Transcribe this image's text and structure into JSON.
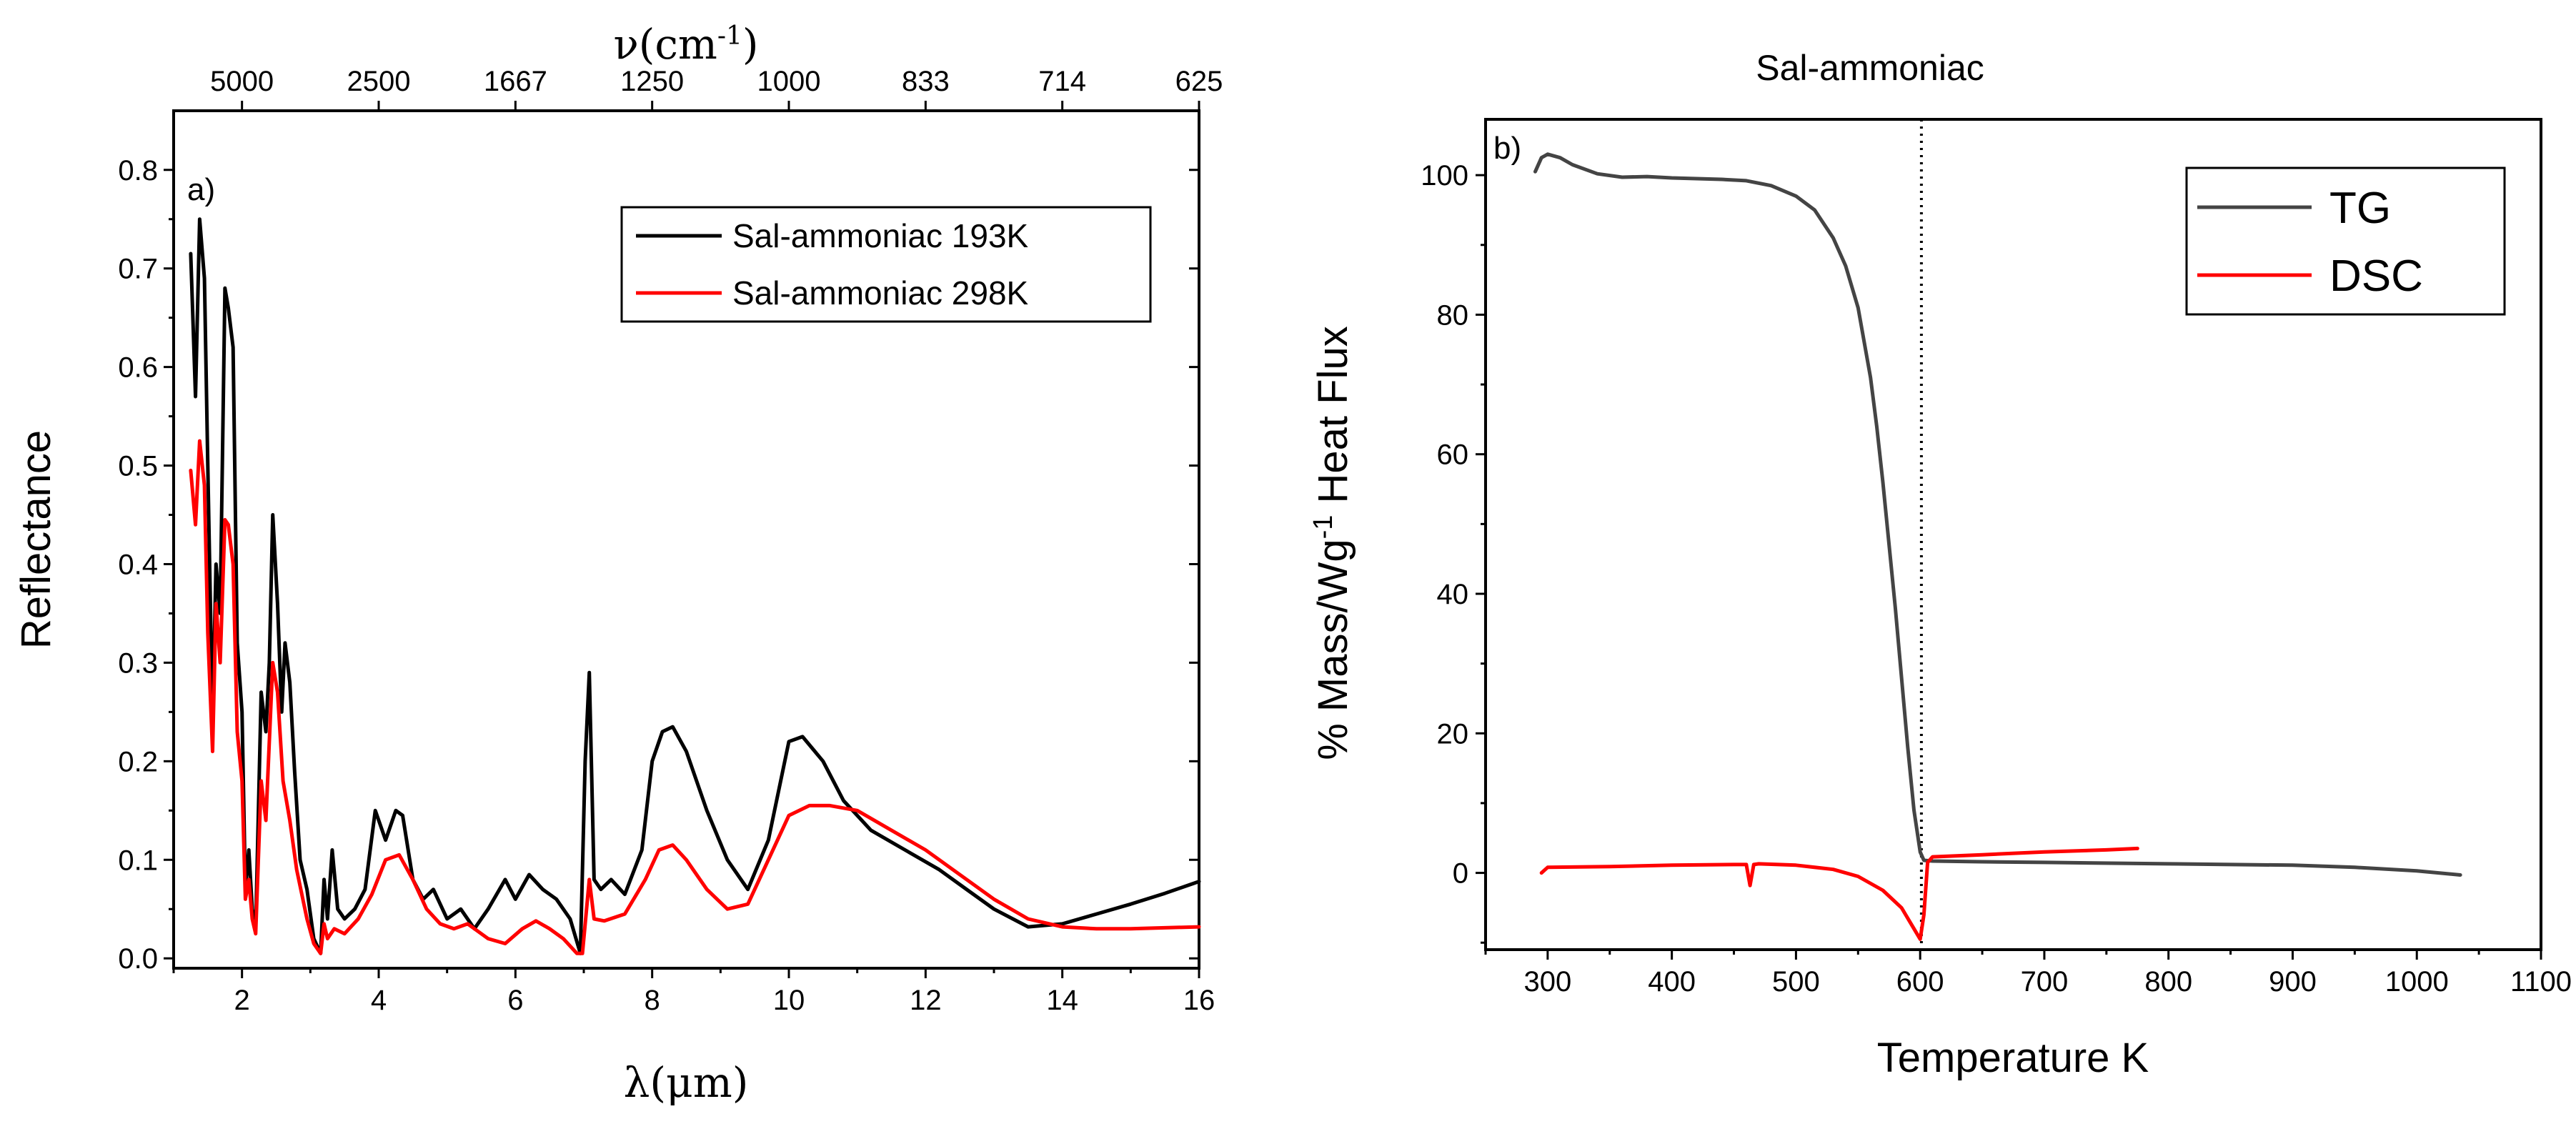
{
  "chart_data": [
    {
      "type": "line",
      "panel_label": "a)",
      "xlabel": "λ(μm)",
      "ylabel": "Reflectance",
      "top_axis_label": "ν(cm",
      "top_axis_label_sup": "-1",
      "top_axis_label_end": ")",
      "xlim": [
        1.0,
        16.0
      ],
      "ylim": [
        -0.01,
        0.86
      ],
      "xticks": [
        2,
        4,
        6,
        8,
        10,
        12,
        14,
        16
      ],
      "xtick_labels": [
        "2",
        "4",
        "6",
        "8",
        "10",
        "12",
        "14",
        "16"
      ],
      "yticks": [
        0.0,
        0.1,
        0.2,
        0.3,
        0.4,
        0.5,
        0.6,
        0.7,
        0.8
      ],
      "ytick_labels": [
        "0.0",
        "0.1",
        "0.2",
        "0.3",
        "0.4",
        "0.5",
        "0.6",
        "0.7",
        "0.8"
      ],
      "top_ticks_um": [
        2.0,
        4.0,
        6.0,
        8.0,
        10.0,
        12.0,
        14.0,
        16.0
      ],
      "top_tick_labels": [
        "5000",
        "2500",
        "1667",
        "1250",
        "1000",
        "833",
        "714",
        "625"
      ],
      "legend_position": "top-right",
      "series": [
        {
          "name": "Sal-ammoniac 193K",
          "color": "#000000",
          "x": [
            1.25,
            1.32,
            1.38,
            1.45,
            1.5,
            1.57,
            1.62,
            1.68,
            1.75,
            1.8,
            1.87,
            1.93,
            2.0,
            2.05,
            2.1,
            2.15,
            2.2,
            2.28,
            2.35,
            2.4,
            2.45,
            2.52,
            2.58,
            2.63,
            2.7,
            2.77,
            2.85,
            2.95,
            3.05,
            3.15,
            3.2,
            3.25,
            3.32,
            3.4,
            3.5,
            3.65,
            3.8,
            3.95,
            4.1,
            4.25,
            4.35,
            4.5,
            4.65,
            4.8,
            5.0,
            5.2,
            5.4,
            5.6,
            5.85,
            6.0,
            6.2,
            6.4,
            6.6,
            6.8,
            6.95,
            7.02,
            7.08,
            7.15,
            7.25,
            7.4,
            7.6,
            7.85,
            8.0,
            8.15,
            8.3,
            8.5,
            8.8,
            9.1,
            9.4,
            9.7,
            10.0,
            10.2,
            10.5,
            10.8,
            11.2,
            11.7,
            12.2,
            12.6,
            13.0,
            13.5,
            14.0,
            14.5,
            15.0,
            15.5,
            16.0
          ],
          "y": [
            0.715,
            0.57,
            0.75,
            0.69,
            0.5,
            0.24,
            0.4,
            0.35,
            0.68,
            0.66,
            0.62,
            0.32,
            0.25,
            0.07,
            0.11,
            0.05,
            0.03,
            0.27,
            0.23,
            0.3,
            0.45,
            0.36,
            0.25,
            0.32,
            0.28,
            0.19,
            0.1,
            0.07,
            0.02,
            0.005,
            0.08,
            0.04,
            0.11,
            0.05,
            0.04,
            0.05,
            0.07,
            0.15,
            0.12,
            0.15,
            0.145,
            0.08,
            0.06,
            0.07,
            0.04,
            0.05,
            0.03,
            0.05,
            0.08,
            0.06,
            0.085,
            0.07,
            0.06,
            0.04,
            0.005,
            0.2,
            0.29,
            0.08,
            0.07,
            0.08,
            0.065,
            0.11,
            0.2,
            0.23,
            0.235,
            0.21,
            0.15,
            0.1,
            0.07,
            0.12,
            0.22,
            0.225,
            0.2,
            0.16,
            0.13,
            0.11,
            0.09,
            0.07,
            0.05,
            0.032,
            0.035,
            0.045,
            0.055,
            0.066,
            0.078
          ]
        },
        {
          "name": "Sal-ammoniac 298K",
          "color": "#ff0000",
          "x": [
            1.25,
            1.32,
            1.38,
            1.45,
            1.5,
            1.57,
            1.62,
            1.68,
            1.75,
            1.8,
            1.87,
            1.93,
            2.0,
            2.05,
            2.1,
            2.15,
            2.2,
            2.28,
            2.35,
            2.45,
            2.52,
            2.6,
            2.7,
            2.8,
            2.95,
            3.05,
            3.15,
            3.2,
            3.25,
            3.35,
            3.5,
            3.7,
            3.9,
            4.1,
            4.3,
            4.5,
            4.7,
            4.9,
            5.1,
            5.3,
            5.6,
            5.85,
            6.1,
            6.3,
            6.5,
            6.7,
            6.9,
            6.98,
            7.08,
            7.15,
            7.3,
            7.6,
            7.9,
            8.1,
            8.3,
            8.5,
            8.8,
            9.1,
            9.4,
            9.7,
            10.0,
            10.3,
            10.6,
            11.0,
            11.5,
            12.0,
            12.5,
            13.0,
            13.5,
            14.0,
            14.5,
            15.0,
            15.5,
            16.0
          ],
          "y": [
            0.495,
            0.44,
            0.525,
            0.48,
            0.33,
            0.21,
            0.36,
            0.3,
            0.445,
            0.44,
            0.4,
            0.23,
            0.18,
            0.06,
            0.08,
            0.04,
            0.025,
            0.18,
            0.14,
            0.3,
            0.27,
            0.18,
            0.14,
            0.09,
            0.04,
            0.015,
            0.005,
            0.035,
            0.02,
            0.03,
            0.025,
            0.04,
            0.065,
            0.1,
            0.105,
            0.08,
            0.05,
            0.035,
            0.03,
            0.035,
            0.02,
            0.015,
            0.03,
            0.038,
            0.03,
            0.02,
            0.005,
            0.005,
            0.08,
            0.04,
            0.038,
            0.045,
            0.08,
            0.11,
            0.115,
            0.1,
            0.07,
            0.05,
            0.055,
            0.1,
            0.145,
            0.155,
            0.155,
            0.15,
            0.13,
            0.11,
            0.085,
            0.06,
            0.04,
            0.032,
            0.03,
            0.03,
            0.031,
            0.032
          ]
        }
      ]
    },
    {
      "type": "line",
      "title": "Sal-ammoniac",
      "panel_label": "b)",
      "xlabel": "Temperature K",
      "ylabel": "% Mass/Wg",
      "ylabel_sup": "-1",
      "ylabel_end": " Heat Flux",
      "xlim": [
        250,
        1100
      ],
      "ylim": [
        -11,
        108
      ],
      "xticks": [
        300,
        400,
        500,
        600,
        700,
        800,
        900,
        1000,
        1100
      ],
      "xtick_labels": [
        "300",
        "400",
        "500",
        "600",
        "700",
        "800",
        "900",
        "1000",
        "1100"
      ],
      "yticks": [
        0,
        20,
        40,
        60,
        80,
        100
      ],
      "ytick_labels": [
        "0",
        "20",
        "40",
        "60",
        "80",
        "100"
      ],
      "vline_x": 601,
      "legend_position": "top-right",
      "series": [
        {
          "name": "TG",
          "color": "#444444",
          "x": [
            290,
            295,
            300,
            310,
            320,
            340,
            360,
            380,
            400,
            420,
            440,
            460,
            480,
            500,
            515,
            530,
            540,
            550,
            560,
            565,
            570,
            575,
            580,
            585,
            590,
            595,
            600,
            603,
            610,
            650,
            700,
            800,
            900,
            950,
            1000,
            1035
          ],
          "y": [
            100.5,
            102.5,
            103.0,
            102.5,
            101.5,
            100.2,
            99.7,
            99.8,
            99.6,
            99.5,
            99.4,
            99.2,
            98.5,
            97.0,
            95.0,
            91.0,
            87.0,
            81.0,
            71.0,
            64.0,
            56.0,
            47.0,
            38.0,
            28.0,
            18.0,
            9.0,
            3.0,
            1.8,
            1.7,
            1.6,
            1.5,
            1.3,
            1.1,
            0.8,
            0.3,
            -0.3
          ]
        },
        {
          "name": "DSC",
          "color": "#ff0000",
          "x": [
            295,
            300,
            350,
            400,
            450,
            460,
            463,
            466,
            470,
            500,
            530,
            550,
            570,
            585,
            595,
            600,
            603,
            606,
            610,
            650,
            700,
            750,
            775
          ],
          "y": [
            0.0,
            0.8,
            0.9,
            1.1,
            1.2,
            1.2,
            -1.8,
            1.2,
            1.3,
            1.1,
            0.5,
            -0.5,
            -2.5,
            -5.0,
            -8.0,
            -9.5,
            -6.0,
            1.5,
            2.3,
            2.6,
            3.0,
            3.3,
            3.5
          ]
        }
      ]
    }
  ]
}
